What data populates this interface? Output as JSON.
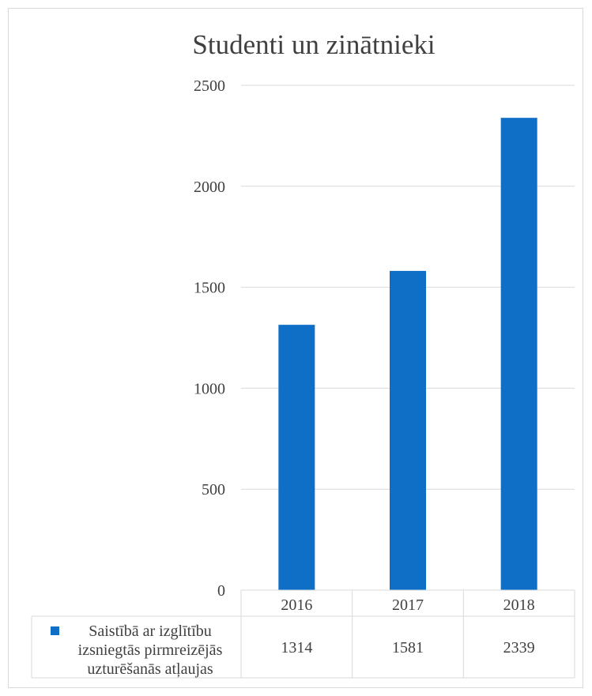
{
  "chart_data": {
    "type": "bar",
    "title": "Studenti un zinātnieki",
    "categories": [
      "2016",
      "2017",
      "2018"
    ],
    "series": [
      {
        "name": "Saistībā ar izglītību izsniegtās pirmreizējās uzturēšanās atļaujas",
        "name_lines": [
          "Saistībā ar izglītību",
          "izsniegtās pirmreizējās",
          "uzturēšanās atļaujas"
        ],
        "values": [
          1314,
          1581,
          2339
        ],
        "color": "#0f6fc6"
      }
    ],
    "ylim": [
      0,
      2500
    ],
    "yticks": [
      0,
      500,
      1000,
      1500,
      2000,
      2500
    ],
    "grid": true,
    "legend": "data-table",
    "data_table": true,
    "colors": {
      "bar": "#0f6fc6",
      "grid": "#d9d9d9",
      "text": "#404040"
    }
  }
}
